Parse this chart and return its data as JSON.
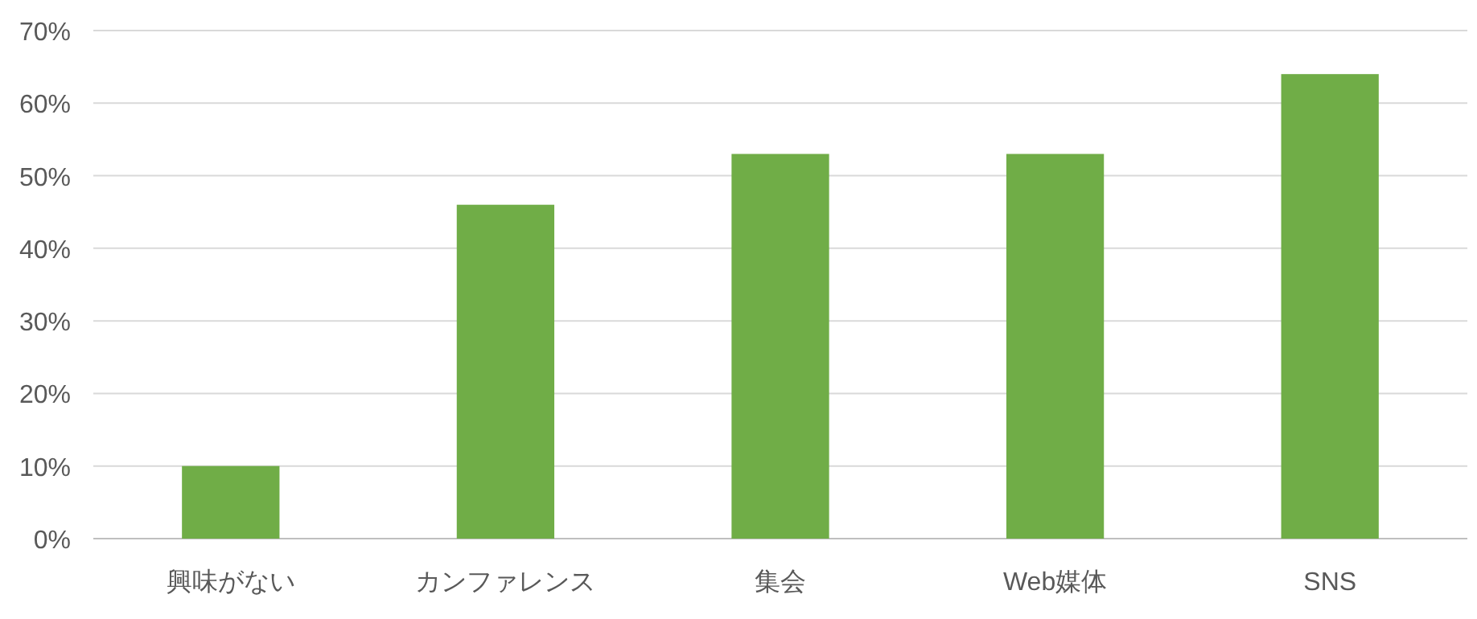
{
  "chart_data": {
    "type": "bar",
    "categories": [
      "興味がない",
      "カンファレンス",
      "集会",
      "Web媒体",
      "SNS"
    ],
    "values": [
      10,
      46,
      53,
      53,
      64
    ],
    "color": "#70ad47",
    "ylim": [
      0,
      70
    ],
    "yticks": [
      {
        "value": 0,
        "label": "0%"
      },
      {
        "value": 10,
        "label": "10%"
      },
      {
        "value": 20,
        "label": "20%"
      },
      {
        "value": 30,
        "label": "30%"
      },
      {
        "value": 40,
        "label": "40%"
      },
      {
        "value": 50,
        "label": "50%"
      },
      {
        "value": 60,
        "label": "60%"
      },
      {
        "value": 70,
        "label": "70%"
      }
    ],
    "grid": "y"
  }
}
